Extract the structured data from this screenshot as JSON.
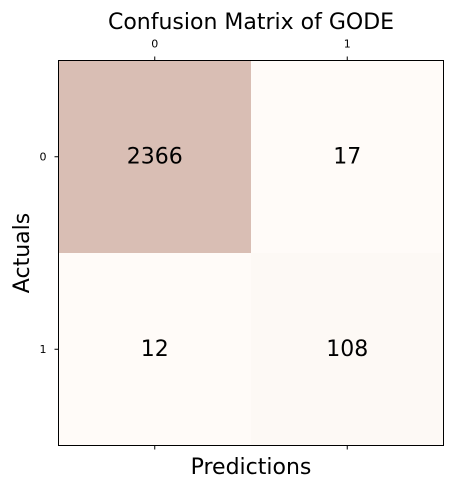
{
  "chart_data": {
    "type": "heatmap",
    "title": "Confusion Matrix of GODE",
    "xlabel": "Predictions",
    "ylabel": "Actuals",
    "x_categories": [
      "0",
      "1"
    ],
    "y_categories": [
      "0",
      "1"
    ],
    "values": [
      [
        2366,
        17
      ],
      [
        12,
        108
      ]
    ],
    "colors": {
      "high": "#d9beb4",
      "low": "#fffbf8",
      "axis": "#000000"
    },
    "x_ticks_position": "top"
  }
}
